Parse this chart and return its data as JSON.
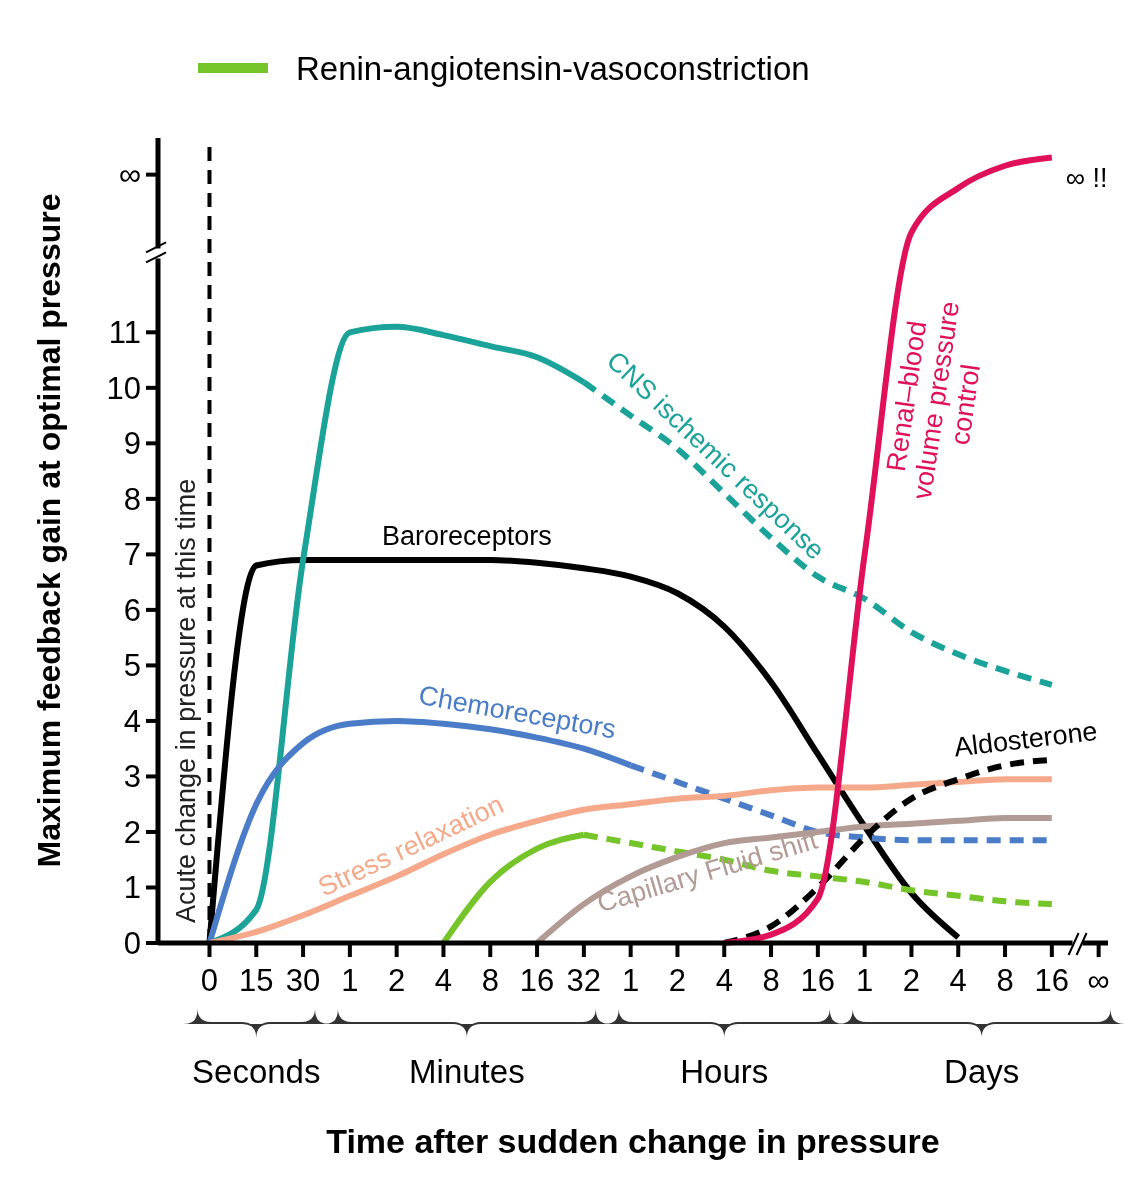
{
  "chart_data": {
    "type": "line",
    "xlabel": "Time after sudden change in pressure",
    "ylabel": "Maximum feedback gain at optimal pressure",
    "categories": [
      "0",
      "15",
      "30",
      "1",
      "2",
      "4",
      "8",
      "16",
      "32",
      "1",
      "2",
      "4",
      "8",
      "16",
      "1",
      "2",
      "4",
      "8",
      "16",
      "∞"
    ],
    "ylim": [
      0,
      14.5
    ],
    "yticks": [
      0,
      1,
      2,
      3,
      4,
      5,
      6,
      7,
      8,
      9,
      10,
      11,
      {
        "value": 13.84,
        "label": "∞"
      }
    ],
    "legend": "top left",
    "grid": false,
    "series": [
      {
        "name": "Baroreceptors",
        "color": "#000000",
        "line_style": "solid",
        "values": [
          0,
          6.8,
          6.9,
          6.9,
          6.9,
          6.9,
          6.9,
          6.85,
          6.75,
          6.6,
          6.3,
          5.7,
          4.7,
          3.4,
          2.1,
          0.9,
          0.1,
          null,
          null,
          null
        ]
      },
      {
        "color": "#1ba39a",
        "line_style": "solid",
        "values": [
          0,
          0.6,
          6.9,
          11,
          11.1,
          10.95,
          10.75,
          10.55,
          10.1,
          null,
          null,
          null,
          null,
          null,
          null,
          null,
          null,
          null,
          null,
          null
        ]
      },
      {
        "name": "CNS ischemic response",
        "color": "#1ba39a",
        "line_style": "dashed",
        "values": [
          null,
          null,
          null,
          null,
          null,
          null,
          null,
          null,
          10.1,
          9.5,
          8.9,
          8.1,
          7.3,
          6.6,
          6.2,
          5.6,
          5.2,
          4.9,
          4.65,
          null
        ]
      },
      {
        "name": "Chemoreceptors",
        "color": "#4a7cc8",
        "line_style": "solid",
        "values": [
          0,
          2.5,
          3.6,
          3.95,
          4,
          3.95,
          3.85,
          3.7,
          3.5,
          3.2,
          null,
          null,
          null,
          null,
          null,
          null,
          null,
          null,
          null,
          null
        ]
      },
      {
        "color": "#4a7cc8",
        "line_style": "dashed",
        "values": [
          null,
          null,
          null,
          null,
          null,
          null,
          null,
          null,
          null,
          3.2,
          2.9,
          2.6,
          2.3,
          2,
          1.9,
          1.85,
          1.85,
          1.85,
          1.85,
          null
        ]
      },
      {
        "name": "Stress relaxation",
        "color": "#f5a98a",
        "line_style": "solid",
        "values": [
          0,
          0.2,
          0.5,
          0.85,
          1.2,
          1.6,
          1.95,
          2.2,
          2.4,
          2.5,
          2.6,
          2.65,
          2.75,
          2.8,
          2.8,
          2.85,
          2.9,
          2.95,
          2.95,
          null
        ]
      },
      {
        "name": "Renin-angiotensin-vasoconstriction",
        "color": "#74c42a",
        "line_style": "solid",
        "values": [
          null,
          null,
          null,
          null,
          null,
          0,
          1.1,
          1.7,
          1.95,
          null,
          null,
          null,
          null,
          null,
          null,
          null,
          null,
          null,
          null,
          null
        ]
      },
      {
        "color": "#74c42a",
        "line_style": "dashed",
        "values": [
          null,
          null,
          null,
          null,
          null,
          null,
          null,
          null,
          1.95,
          1.8,
          1.65,
          1.5,
          1.3,
          1.2,
          1.1,
          0.95,
          0.85,
          0.75,
          0.7,
          null
        ]
      },
      {
        "name": "Capillary Fluid shift",
        "color": "#b29a95",
        "line_style": "solid",
        "values": [
          null,
          null,
          null,
          null,
          null,
          null,
          null,
          0,
          0.7,
          1.2,
          1.55,
          1.8,
          1.9,
          2,
          2.1,
          2.15,
          2.2,
          2.25,
          2.25,
          null
        ]
      },
      {
        "name": "Aldosterone",
        "color": "#000000",
        "line_style": "dashed",
        "values": [
          null,
          null,
          null,
          null,
          null,
          null,
          null,
          null,
          null,
          null,
          null,
          0,
          0.3,
          1,
          1.9,
          2.6,
          2.95,
          3.2,
          3.3,
          null
        ]
      },
      {
        "name": "Renal–blood\nvolume pressure\ncontrol",
        "color": "#e0105a",
        "line_style": "solid",
        "values": [
          null,
          null,
          null,
          null,
          null,
          null,
          null,
          null,
          null,
          null,
          null,
          0,
          0.15,
          0.8,
          7,
          12.8,
          13.6,
          14,
          14.15,
          null
        ]
      }
    ],
    "ref_lines": [
      {
        "axis": "x",
        "value": "0",
        "label": "Acute change in pressure at this time",
        "color": "#000000",
        "line_style": "dashed"
      }
    ],
    "annotations": [
      "∞ !!",
      "Seconds",
      "Minutes",
      "Hours",
      "Days"
    ]
  }
}
